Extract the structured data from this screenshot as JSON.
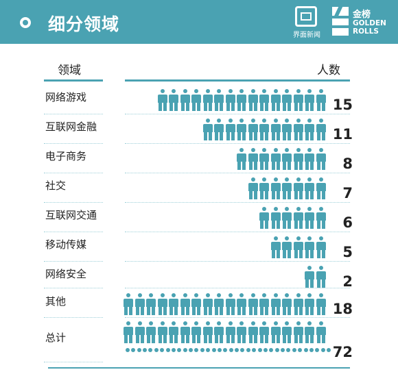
{
  "header": {
    "title": "细分领域",
    "logo1_caption": "界面新闻",
    "logo2_cn": "金榜",
    "logo2_en": "GOLDEN ROLLS"
  },
  "chart_data": {
    "type": "bar",
    "xlabel": "领域",
    "ylabel": "人数",
    "categories": [
      "网络游戏",
      "互联网金融",
      "电子商务",
      "社交",
      "互联网交通",
      "移动传媒",
      "网络安全",
      "其他",
      "总计"
    ],
    "values": [
      15,
      11,
      8,
      7,
      6,
      5,
      2,
      18,
      72
    ],
    "color": "#4aa2b2"
  }
}
